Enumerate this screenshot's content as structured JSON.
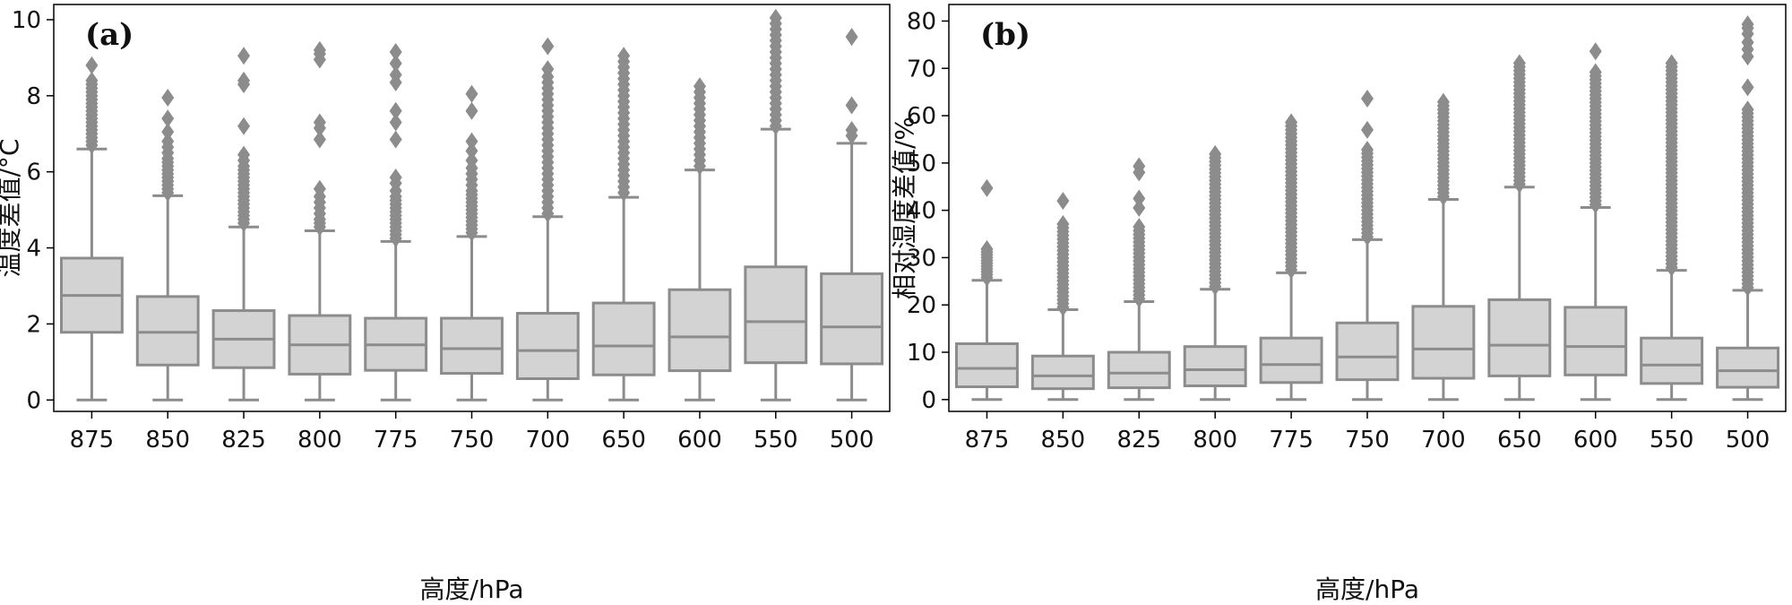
{
  "chart_data": [
    {
      "type": "box",
      "panel_label": "(a)",
      "xlabel": "高度/hPa",
      "ylabel": "温度差值/°C",
      "ylim": [
        -0.3,
        10.4
      ],
      "yticks": [
        0,
        2,
        4,
        6,
        8,
        10
      ],
      "ytick_labels": [
        "0",
        "2",
        "4",
        "6",
        "8",
        "10"
      ],
      "categories": [
        "875",
        "850",
        "825",
        "800",
        "775",
        "750",
        "700",
        "650",
        "600",
        "550",
        "500"
      ],
      "boxes": [
        {
          "q1": 1.78,
          "median": 2.75,
          "q3": 3.73,
          "whisker_low": 0,
          "whisker_high": 6.6
        },
        {
          "q1": 0.92,
          "median": 1.78,
          "q3": 2.72,
          "whisker_low": 0,
          "whisker_high": 5.37
        },
        {
          "q1": 0.85,
          "median": 1.6,
          "q3": 2.35,
          "whisker_low": 0,
          "whisker_high": 4.55
        },
        {
          "q1": 0.68,
          "median": 1.45,
          "q3": 2.22,
          "whisker_low": 0,
          "whisker_high": 4.45
        },
        {
          "q1": 0.78,
          "median": 1.45,
          "q3": 2.15,
          "whisker_low": 0,
          "whisker_high": 4.17
        },
        {
          "q1": 0.7,
          "median": 1.35,
          "q3": 2.15,
          "whisker_low": 0,
          "whisker_high": 4.3
        },
        {
          "q1": 0.56,
          "median": 1.3,
          "q3": 2.28,
          "whisker_low": 0,
          "whisker_high": 4.82
        },
        {
          "q1": 0.66,
          "median": 1.42,
          "q3": 2.55,
          "whisker_low": 0,
          "whisker_high": 5.33
        },
        {
          "q1": 0.77,
          "median": 1.66,
          "q3": 2.9,
          "whisker_low": 0,
          "whisker_high": 6.05
        },
        {
          "q1": 0.98,
          "median": 2.06,
          "q3": 3.5,
          "whisker_low": 0,
          "whisker_high": 7.12
        },
        {
          "q1": 0.95,
          "median": 1.92,
          "q3": 3.32,
          "whisker_low": 0,
          "whisker_high": 6.75
        }
      ],
      "outliers": [
        [
          6.7,
          6.8,
          6.9,
          7.0,
          7.1,
          7.2,
          7.3,
          7.4,
          7.5,
          7.6,
          7.7,
          7.8,
          7.9,
          8.0,
          8.1,
          8.2,
          8.3,
          8.4,
          8.8
        ],
        [
          5.45,
          5.55,
          5.65,
          5.75,
          5.85,
          5.95,
          6.05,
          6.15,
          6.25,
          6.35,
          6.5,
          6.65,
          6.8,
          7.05,
          7.4,
          7.95
        ],
        [
          4.65,
          4.75,
          4.85,
          4.95,
          5.05,
          5.15,
          5.25,
          5.35,
          5.45,
          5.55,
          5.65,
          5.75,
          5.85,
          5.95,
          6.05,
          6.15,
          6.3,
          6.45,
          7.2,
          8.3,
          8.4,
          9.05
        ],
        [
          4.55,
          4.65,
          4.75,
          4.9,
          5.05,
          5.2,
          5.35,
          5.55,
          6.85,
          7.15,
          7.3,
          8.95,
          9.1,
          9.2
        ],
        [
          4.25,
          4.35,
          4.45,
          4.55,
          4.65,
          4.75,
          4.85,
          4.95,
          5.05,
          5.15,
          5.25,
          5.35,
          5.5,
          5.7,
          5.85,
          6.85,
          7.3,
          7.6,
          8.35,
          8.55,
          8.85,
          9.15
        ],
        [
          4.4,
          4.5,
          4.6,
          4.7,
          4.8,
          4.9,
          5.0,
          5.1,
          5.2,
          5.3,
          5.4,
          5.5,
          5.65,
          5.8,
          5.95,
          6.1,
          6.3,
          6.55,
          6.8,
          7.6,
          8.05
        ],
        [
          4.9,
          5.05,
          5.2,
          5.35,
          5.5,
          5.65,
          5.8,
          5.95,
          6.1,
          6.25,
          6.4,
          6.55,
          6.7,
          6.85,
          7.0,
          7.15,
          7.3,
          7.45,
          7.6,
          7.75,
          7.9,
          8.05,
          8.2,
          8.35,
          8.5,
          8.7,
          9.3
        ],
        [
          5.45,
          5.6,
          5.75,
          5.9,
          6.05,
          6.2,
          6.35,
          6.5,
          6.65,
          6.8,
          6.95,
          7.1,
          7.25,
          7.4,
          7.55,
          7.7,
          7.85,
          8.0,
          8.15,
          8.3,
          8.45,
          8.6,
          8.75,
          8.9,
          9.05
        ],
        [
          6.15,
          6.3,
          6.45,
          6.6,
          6.75,
          6.9,
          7.05,
          7.2,
          7.35,
          7.5,
          7.65,
          7.8,
          7.95,
          8.1,
          8.25
        ],
        [
          7.2,
          7.35,
          7.5,
          7.65,
          7.8,
          7.95,
          8.1,
          8.25,
          8.4,
          8.55,
          8.7,
          8.85,
          9.0,
          9.15,
          9.3,
          9.45,
          9.6,
          9.75,
          9.9,
          10.05
        ],
        [
          6.95,
          7.1,
          7.75,
          9.55
        ]
      ]
    },
    {
      "type": "box",
      "panel_label": "(b)",
      "xlabel": "高度/hPa",
      "ylabel": "相对湿度差值/%",
      "ylim": [
        -2.5,
        83.5
      ],
      "yticks": [
        0,
        10,
        20,
        30,
        40,
        50,
        60,
        70,
        80
      ],
      "ytick_labels": [
        "0",
        "10",
        "20",
        "30",
        "40",
        "50",
        "60",
        "70",
        "80"
      ],
      "categories": [
        "875",
        "850",
        "825",
        "800",
        "775",
        "750",
        "700",
        "650",
        "600",
        "550",
        "500"
      ],
      "boxes": [
        {
          "q1": 2.7,
          "median": 6.6,
          "q3": 11.8,
          "whisker_low": 0,
          "whisker_high": 25.2
        },
        {
          "q1": 2.3,
          "median": 5.0,
          "q3": 9.2,
          "whisker_low": 0,
          "whisker_high": 19.0
        },
        {
          "q1": 2.5,
          "median": 5.6,
          "q3": 10.0,
          "whisker_low": 0,
          "whisker_high": 20.7
        },
        {
          "q1": 2.9,
          "median": 6.3,
          "q3": 11.2,
          "whisker_low": 0,
          "whisker_high": 23.3
        },
        {
          "q1": 3.6,
          "median": 7.4,
          "q3": 13.0,
          "whisker_low": 0,
          "whisker_high": 26.8
        },
        {
          "q1": 4.2,
          "median": 9.0,
          "q3": 16.2,
          "whisker_low": 0,
          "whisker_high": 33.8
        },
        {
          "q1": 4.5,
          "median": 10.7,
          "q3": 19.7,
          "whisker_low": 0,
          "whisker_high": 42.3
        },
        {
          "q1": 5.0,
          "median": 11.5,
          "q3": 21.1,
          "whisker_low": 0,
          "whisker_high": 44.9
        },
        {
          "q1": 5.2,
          "median": 11.2,
          "q3": 19.5,
          "whisker_low": 0,
          "whisker_high": 40.6
        },
        {
          "q1": 3.4,
          "median": 7.3,
          "q3": 13.0,
          "whisker_low": 0,
          "whisker_high": 27.3
        },
        {
          "q1": 2.6,
          "median": 6.1,
          "q3": 10.9,
          "whisker_low": 0,
          "whisker_high": 23.1
        }
      ],
      "outliers": [
        [
          25.8,
          26.4,
          27.0,
          27.6,
          28.2,
          28.8,
          29.4,
          30.0,
          30.6,
          31.2,
          31.8,
          44.7
        ],
        [
          19.5,
          20.3,
          21.1,
          21.9,
          22.7,
          23.5,
          24.3,
          25.1,
          25.9,
          26.7,
          27.5,
          28.3,
          29.1,
          29.9,
          30.7,
          31.5,
          32.3,
          33.1,
          33.9,
          34.7,
          35.5,
          36.3,
          37.1,
          42.0
        ],
        [
          21.3,
          22.1,
          22.9,
          23.7,
          24.5,
          25.3,
          26.1,
          26.9,
          27.7,
          28.5,
          29.3,
          30.1,
          30.9,
          31.7,
          32.5,
          33.3,
          34.1,
          34.9,
          35.7,
          36.5,
          40.5,
          42.5,
          48.0,
          49.3
        ],
        [
          23.9,
          24.7,
          25.5,
          26.3,
          27.1,
          27.9,
          28.7,
          29.5,
          30.3,
          31.1,
          31.9,
          32.7,
          33.5,
          34.3,
          35.1,
          35.9,
          36.7,
          37.5,
          38.3,
          39.1,
          39.9,
          40.7,
          41.5,
          42.3,
          43.1,
          43.9,
          44.7,
          45.5,
          46.3,
          47.1,
          47.9,
          48.7,
          49.5,
          50.3,
          51.1,
          51.9
        ],
        [
          27.4,
          28.2,
          29.0,
          29.8,
          30.6,
          31.4,
          32.2,
          33.0,
          33.8,
          34.6,
          35.4,
          36.2,
          37.0,
          37.8,
          38.6,
          39.4,
          40.2,
          41.0,
          41.8,
          42.6,
          43.4,
          44.2,
          45.0,
          45.8,
          46.6,
          47.4,
          48.2,
          49.0,
          49.8,
          50.6,
          51.4,
          52.2,
          53.0,
          53.8,
          54.6,
          55.4,
          56.2,
          57.0,
          57.8,
          58.6
        ],
        [
          34.4,
          35.2,
          36.0,
          36.8,
          37.6,
          38.4,
          39.2,
          40.0,
          40.8,
          41.6,
          42.4,
          43.2,
          44.0,
          44.8,
          45.6,
          46.4,
          47.2,
          48.0,
          48.8,
          49.6,
          50.4,
          51.2,
          52.0,
          52.8,
          57.0,
          63.6
        ],
        [
          42.9,
          43.7,
          44.5,
          45.3,
          46.1,
          46.9,
          47.7,
          48.5,
          49.3,
          50.1,
          50.9,
          51.7,
          52.5,
          53.3,
          54.1,
          54.9,
          55.7,
          56.5,
          57.3,
          58.1,
          58.9,
          59.7,
          60.5,
          61.3,
          62.1,
          62.9
        ],
        [
          45.5,
          46.3,
          47.1,
          47.9,
          48.7,
          49.5,
          50.3,
          51.1,
          51.9,
          52.7,
          53.5,
          54.3,
          55.1,
          55.9,
          56.7,
          57.5,
          58.3,
          59.1,
          59.9,
          60.7,
          61.5,
          62.3,
          63.1,
          63.9,
          64.7,
          65.5,
          66.3,
          67.1,
          67.9,
          68.7,
          69.5,
          70.3,
          71.1
        ],
        [
          41.2,
          42.0,
          42.8,
          43.6,
          44.4,
          45.2,
          46.0,
          46.8,
          47.6,
          48.4,
          49.2,
          50.0,
          50.8,
          51.6,
          52.4,
          53.2,
          54.0,
          54.8,
          55.6,
          56.4,
          57.2,
          58.0,
          58.8,
          59.6,
          60.4,
          61.2,
          62.0,
          62.8,
          63.6,
          64.4,
          65.2,
          66.0,
          66.8,
          67.6,
          68.4,
          69.2,
          73.6
        ],
        [
          27.9,
          28.7,
          29.5,
          30.3,
          31.1,
          31.9,
          32.7,
          33.5,
          34.3,
          35.1,
          35.9,
          36.7,
          37.5,
          38.3,
          39.1,
          39.9,
          40.7,
          41.5,
          42.3,
          43.1,
          43.9,
          44.7,
          45.5,
          46.3,
          47.1,
          47.9,
          48.7,
          49.5,
          50.3,
          51.1,
          51.9,
          52.7,
          53.5,
          54.3,
          55.1,
          55.9,
          56.7,
          57.5,
          58.3,
          59.1,
          59.9,
          60.7,
          61.5,
          62.3,
          63.1,
          63.9,
          64.7,
          65.5,
          66.3,
          67.1,
          67.9,
          68.7,
          69.5,
          70.3,
          71.1
        ],
        [
          23.7,
          24.5,
          25.3,
          26.1,
          26.9,
          27.7,
          28.5,
          29.3,
          30.1,
          30.9,
          31.7,
          32.5,
          33.3,
          34.1,
          34.9,
          35.7,
          36.5,
          37.3,
          38.1,
          38.9,
          39.7,
          40.5,
          41.3,
          42.1,
          42.9,
          43.7,
          44.5,
          45.3,
          46.1,
          46.9,
          47.7,
          48.5,
          49.3,
          50.1,
          50.9,
          51.7,
          52.5,
          53.3,
          54.1,
          54.9,
          55.7,
          56.5,
          57.3,
          58.1,
          58.9,
          59.7,
          60.5,
          61.3,
          66.0,
          72.5,
          74.0,
          75.5,
          77.3,
          78.5,
          79.3
        ]
      ]
    }
  ],
  "style": {
    "box_fill": "#d3d3d3",
    "box_stroke": "#8c8c8c",
    "outlier_fill": "#8c8c8c",
    "axis_color": "#000000"
  }
}
